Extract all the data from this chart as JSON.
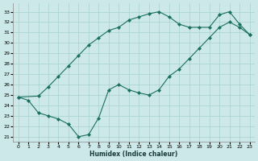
{
  "xlabel": "Humidex (Indice chaleur)",
  "xlim": [
    -0.5,
    23.5
  ],
  "ylim": [
    20.5,
    33.8
  ],
  "yticks": [
    21,
    22,
    23,
    24,
    25,
    26,
    27,
    28,
    29,
    30,
    31,
    32,
    33
  ],
  "xticks": [
    0,
    1,
    2,
    3,
    4,
    5,
    6,
    7,
    8,
    9,
    10,
    11,
    12,
    13,
    14,
    15,
    16,
    17,
    18,
    19,
    20,
    21,
    22,
    23
  ],
  "line_color": "#1a7060",
  "bg_color": "#cce8e8",
  "grid_color": "#a8d0d0",
  "line1_x": [
    0,
    1,
    2,
    3,
    4,
    5,
    6,
    7,
    8,
    9,
    10,
    11,
    12,
    13,
    14,
    15,
    16,
    17,
    18,
    19,
    20,
    21,
    22,
    23
  ],
  "line1_y": [
    24.8,
    24.5,
    23.3,
    23.0,
    22.7,
    22.2,
    21.0,
    21.2,
    22.8,
    25.5,
    26.0,
    25.5,
    25.2,
    25.0,
    25.5,
    26.8,
    27.5,
    28.5,
    29.5,
    30.5,
    31.5,
    32.0,
    31.5,
    30.8
  ],
  "line2_x": [
    0,
    2,
    3,
    4,
    5,
    6,
    7,
    8,
    9,
    10,
    11,
    12,
    13,
    14,
    15,
    16,
    17,
    18,
    19,
    20,
    21,
    22,
    23
  ],
  "line2_y": [
    24.8,
    24.9,
    25.8,
    26.8,
    27.8,
    28.8,
    29.8,
    30.5,
    31.2,
    31.5,
    32.2,
    32.5,
    32.8,
    33.0,
    32.5,
    31.8,
    31.5,
    31.5,
    31.5,
    32.7,
    33.0,
    31.8,
    30.8
  ]
}
